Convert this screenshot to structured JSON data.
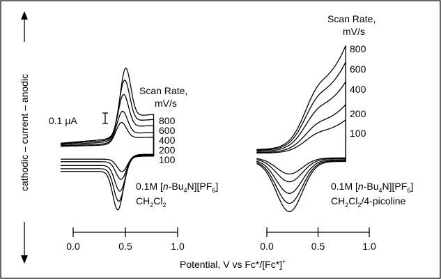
{
  "figure": {
    "ylabel": "cathodic – current – anodic",
    "xlabel": "Potential, V vs Fc*/[Fc*]",
    "xlabel_sup": "+",
    "scale_bar": "0.1 μA"
  },
  "chart_data": [
    {
      "type": "line",
      "panel": "left",
      "solution": [
        "0.1M [n-Bu4N][PF6]",
        "CH2Cl2"
      ],
      "xlabel": "Potential, V vs Fc*/[Fc*]+",
      "xlim": [
        0.0,
        1.0
      ],
      "xticks": [
        "0.0",
        "0.5",
        "1.0"
      ],
      "legend_title": [
        "Scan Rate,",
        "mV/s"
      ],
      "series": [
        {
          "name": "800",
          "scan_rate": 800,
          "anodic_peak_x": 0.5,
          "relative_anodic_peak": 1.0
        },
        {
          "name": "600",
          "scan_rate": 600,
          "anodic_peak_x": 0.49,
          "relative_anodic_peak": 0.85
        },
        {
          "name": "400",
          "scan_rate": 400,
          "anodic_peak_x": 0.48,
          "relative_anodic_peak": 0.67
        },
        {
          "name": "200",
          "scan_rate": 200,
          "anodic_peak_x": 0.47,
          "relative_anodic_peak": 0.46
        },
        {
          "name": "100",
          "scan_rate": 100,
          "anodic_peak_x": 0.46,
          "relative_anodic_peak": 0.32
        }
      ]
    },
    {
      "type": "line",
      "panel": "right",
      "solution": [
        "0.1M [n-Bu4N][PF6]",
        "CH2Cl2/4-picoline"
      ],
      "xlabel": "Potential, V vs Fc*/[Fc*]+",
      "xlim": [
        0.0,
        1.0
      ],
      "xticks": [
        "0.0",
        "0.5",
        "1.0"
      ],
      "legend_title": [
        "Scan Rate,",
        "mV/s"
      ],
      "series": [
        {
          "name": "800",
          "scan_rate": 800,
          "relative_current_at_switch": 1.0
        },
        {
          "name": "600",
          "scan_rate": 600,
          "relative_current_at_switch": 0.85
        },
        {
          "name": "400",
          "scan_rate": 400,
          "relative_current_at_switch": 0.67
        },
        {
          "name": "200",
          "scan_rate": 200,
          "relative_current_at_switch": 0.46
        },
        {
          "name": "100",
          "scan_rate": 100,
          "relative_current_at_switch": 0.32
        }
      ]
    }
  ]
}
